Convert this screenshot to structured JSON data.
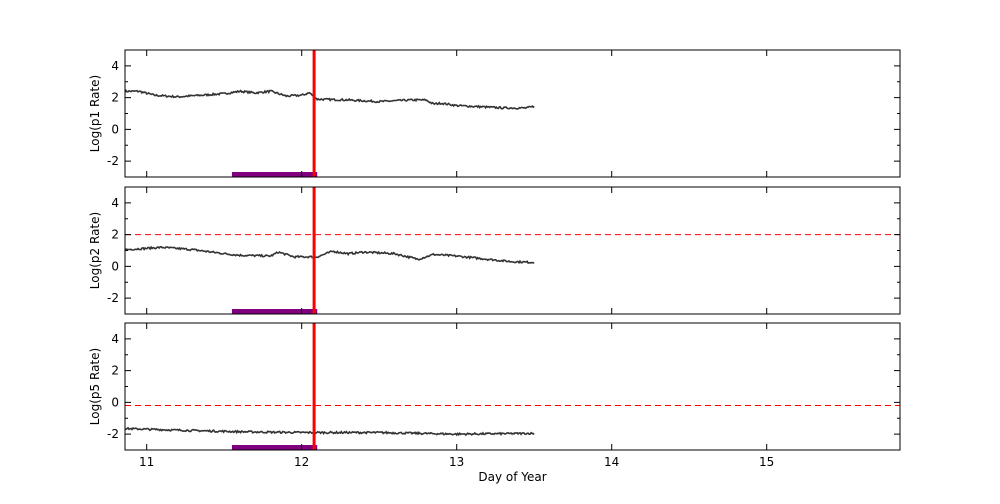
{
  "chart_data": [
    {
      "type": "line",
      "ylabel": "Log(p1 Rate)",
      "xlim": [
        10.86,
        15.86
      ],
      "ylim": [
        -3,
        5
      ],
      "yticks": [
        -2,
        0,
        2,
        4
      ],
      "xticks": [
        11,
        12,
        13,
        14,
        15
      ],
      "show_xticklabels": false,
      "series": [
        {
          "color": "#333333",
          "x": [
            10.86,
            10.95,
            11.05,
            11.2,
            11.35,
            11.5,
            11.6,
            11.7,
            11.8,
            11.9,
            12.0,
            12.05,
            12.1,
            12.3,
            12.5,
            12.7,
            12.8,
            12.85,
            12.9,
            13.0,
            13.2,
            13.3,
            13.45,
            13.5
          ],
          "y": [
            2.4,
            2.4,
            2.15,
            2.05,
            2.15,
            2.25,
            2.4,
            2.3,
            2.4,
            2.1,
            2.15,
            2.3,
            1.9,
            1.85,
            1.75,
            1.85,
            1.85,
            1.6,
            1.65,
            1.5,
            1.4,
            1.35,
            1.35,
            1.45
          ]
        }
      ],
      "vline": {
        "x": 12.08,
        "color": "#ff0000"
      },
      "hline": null,
      "span": {
        "x": [
          11.55,
          12.1
        ],
        "color": "#800080"
      }
    },
    {
      "type": "line",
      "ylabel": "Log(p2 Rate)",
      "xlim": [
        10.86,
        15.86
      ],
      "ylim": [
        -3,
        5
      ],
      "yticks": [
        -2,
        0,
        2,
        4
      ],
      "xticks": [
        11,
        12,
        13,
        14,
        15
      ],
      "show_xticklabels": false,
      "series": [
        {
          "color": "#333333",
          "x": [
            10.86,
            11.1,
            11.3,
            11.5,
            11.6,
            11.8,
            11.85,
            11.95,
            12.1,
            12.2,
            12.3,
            12.4,
            12.6,
            12.75,
            12.85,
            13.0,
            13.2,
            13.35,
            13.5
          ],
          "y": [
            1.05,
            1.2,
            1.05,
            0.8,
            0.7,
            0.65,
            0.9,
            0.6,
            0.6,
            0.95,
            0.8,
            0.9,
            0.8,
            0.45,
            0.75,
            0.65,
            0.45,
            0.3,
            0.25
          ]
        }
      ],
      "vline": {
        "x": 12.08,
        "color": "#ff0000"
      },
      "hline": {
        "y": 2,
        "color": "#ff0000",
        "style": "dashed"
      },
      "span": {
        "x": [
          11.55,
          12.1
        ],
        "color": "#800080"
      }
    },
    {
      "type": "line",
      "ylabel": "Log(p5 Rate)",
      "xlabel": "Day of Year",
      "xlim": [
        10.86,
        15.86
      ],
      "ylim": [
        -3,
        5
      ],
      "yticks": [
        -2,
        0,
        2,
        4
      ],
      "xticks": [
        11,
        12,
        13,
        14,
        15
      ],
      "show_xticklabels": true,
      "series": [
        {
          "color": "#333333",
          "x": [
            10.86,
            11.2,
            11.6,
            12.0,
            12.5,
            13.0,
            13.5
          ],
          "y": [
            -1.65,
            -1.75,
            -1.85,
            -1.9,
            -1.9,
            -2.0,
            -1.95
          ]
        }
      ],
      "vline": {
        "x": 12.08,
        "color": "#ff0000"
      },
      "hline": {
        "y": -0.2,
        "color": "#ff0000",
        "style": "dashed"
      },
      "span": {
        "x": [
          11.55,
          12.1
        ],
        "color": "#800080"
      }
    }
  ]
}
